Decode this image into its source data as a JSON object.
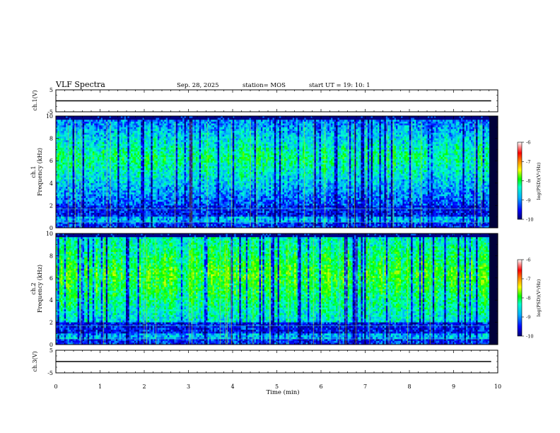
{
  "header": {
    "title": "VLF Spectra",
    "date": "Sep. 28, 2025",
    "station": "station= MOS",
    "start": "start  UT =   19: 10: 1"
  },
  "chart_data": [
    {
      "type": "line",
      "ylabel": "ch.1(V)",
      "xlim": [
        0,
        10
      ],
      "ylim": [
        -5,
        5
      ],
      "yticks": [
        "5",
        "-5"
      ],
      "series": [
        {
          "x": [
            0,
            9.85
          ],
          "y": [
            0,
            0
          ]
        }
      ]
    },
    {
      "type": "heatmap",
      "ylabel": "ch.1\nFrequency  (kHz)",
      "xlim": [
        0,
        10
      ],
      "ylim": [
        0,
        10
      ],
      "yticks": [
        "0",
        "2",
        "4",
        "6",
        "8",
        "10"
      ],
      "colorbar": {
        "label": "log(PSD)(V²/Hz)",
        "range": [
          -10,
          -6
        ],
        "ticks": [
          "-6",
          "-7",
          "-8",
          "-9",
          "-10"
        ]
      }
    },
    {
      "type": "heatmap",
      "ylabel": "ch.2\nFrequency  (kHz)",
      "xlim": [
        0,
        10
      ],
      "ylim": [
        0,
        10
      ],
      "yticks": [
        "0",
        "2",
        "4",
        "6",
        "8",
        "10"
      ],
      "colorbar": {
        "label": "log(PSD)(V²/Hz)",
        "range": [
          -10,
          -6
        ],
        "ticks": [
          "-6",
          "-7",
          "-8",
          "-9",
          "-10"
        ]
      }
    },
    {
      "type": "line",
      "ylabel": "ch.3(V)",
      "xlim": [
        0,
        10
      ],
      "ylim": [
        -5,
        5
      ],
      "yticks": [
        "5",
        "-5"
      ],
      "series": [
        {
          "x": [
            0,
            9.85
          ],
          "y": [
            0,
            0
          ]
        }
      ]
    }
  ],
  "xaxis": {
    "label": "Time  (min)",
    "ticks": [
      "0",
      "1",
      "2",
      "3",
      "4",
      "5",
      "6",
      "7",
      "8",
      "9",
      "10"
    ]
  },
  "colors": {
    "colormap": [
      "#000070",
      "#0000ff",
      "#00b0ff",
      "#00ffcc",
      "#00ff00",
      "#a0ff00",
      "#ffff00",
      "#ff8000",
      "#ff0000",
      "#ffffff"
    ],
    "trace": "#000000"
  }
}
